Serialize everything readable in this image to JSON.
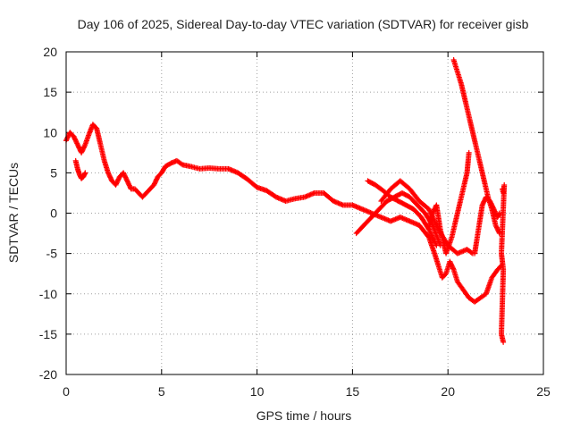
{
  "chart_data": {
    "type": "scatter",
    "title": "Day 106 of 2025, Sidereal Day-to-day VTEC variation (SDTVAR) for receiver gisb",
    "xlabel": "GPS time / hours",
    "ylabel": "SDTVAR / TECUs",
    "xlim": [
      0,
      25
    ],
    "ylim": [
      -20,
      20
    ],
    "xticks": [
      "0",
      "5",
      "10",
      "15",
      "20",
      "25"
    ],
    "yticks": [
      "20",
      "15",
      "10",
      "5",
      "0",
      "-5",
      "-10",
      "-15",
      "-20"
    ],
    "grid": true,
    "marker": "+",
    "color": "#ff0000",
    "series": [
      {
        "name": "main-trace",
        "points": [
          [
            0.0,
            9.0
          ],
          [
            0.2,
            10.0
          ],
          [
            0.4,
            9.5
          ],
          [
            0.6,
            8.5
          ],
          [
            0.8,
            7.5
          ],
          [
            1.0,
            8.5
          ],
          [
            1.2,
            9.8
          ],
          [
            1.4,
            11.0
          ],
          [
            1.6,
            10.5
          ],
          [
            1.8,
            8.5
          ],
          [
            2.0,
            6.5
          ],
          [
            2.2,
            5.0
          ],
          [
            2.4,
            4.0
          ],
          [
            2.6,
            3.5
          ],
          [
            2.8,
            4.5
          ],
          [
            3.0,
            5.0
          ],
          [
            3.2,
            4.0
          ],
          [
            3.4,
            3.0
          ],
          [
            3.6,
            3.0
          ],
          [
            3.8,
            2.5
          ],
          [
            4.0,
            2.0
          ],
          [
            4.2,
            2.5
          ],
          [
            4.4,
            3.0
          ],
          [
            4.6,
            3.5
          ],
          [
            4.8,
            4.5
          ],
          [
            5.0,
            5.0
          ],
          [
            5.2,
            5.8
          ],
          [
            5.5,
            6.2
          ],
          [
            5.8,
            6.5
          ],
          [
            6.1,
            6.0
          ],
          [
            6.5,
            5.8
          ],
          [
            7.0,
            5.5
          ],
          [
            7.5,
            5.6
          ],
          [
            8.0,
            5.5
          ],
          [
            8.5,
            5.5
          ],
          [
            9.0,
            5.0
          ],
          [
            9.5,
            4.2
          ],
          [
            10.0,
            3.2
          ],
          [
            10.5,
            2.8
          ],
          [
            11.0,
            2.0
          ],
          [
            11.5,
            1.5
          ],
          [
            12.0,
            1.8
          ],
          [
            12.5,
            2.0
          ],
          [
            13.0,
            2.5
          ],
          [
            13.5,
            2.5
          ],
          [
            14.0,
            1.5
          ],
          [
            14.5,
            1.0
          ],
          [
            15.0,
            1.0
          ],
          [
            15.5,
            0.5
          ],
          [
            16.0,
            0.0
          ],
          [
            16.5,
            -0.5
          ],
          [
            17.0,
            -1.0
          ],
          [
            17.5,
            -0.5
          ],
          [
            18.0,
            -1.0
          ],
          [
            18.5,
            -1.5
          ],
          [
            19.0,
            -3.0
          ],
          [
            19.3,
            -5.0
          ],
          [
            19.5,
            -6.5
          ],
          [
            19.7,
            -8.0
          ],
          [
            19.9,
            -7.5
          ],
          [
            20.1,
            -6.0
          ],
          [
            20.3,
            -7.0
          ],
          [
            20.5,
            -8.5
          ],
          [
            20.8,
            -9.5
          ],
          [
            21.1,
            -10.5
          ],
          [
            21.4,
            -11.0
          ],
          [
            21.7,
            -10.5
          ],
          [
            22.0,
            -10.0
          ],
          [
            22.3,
            -8.0
          ],
          [
            22.6,
            -7.0
          ],
          [
            22.8,
            -6.5
          ]
        ]
      },
      {
        "name": "early-dip",
        "points": [
          [
            0.5,
            6.5
          ],
          [
            0.6,
            5.5
          ],
          [
            0.7,
            4.8
          ],
          [
            0.8,
            4.3
          ],
          [
            0.9,
            4.5
          ],
          [
            1.0,
            5.0
          ]
        ]
      },
      {
        "name": "mid-branch",
        "points": [
          [
            15.2,
            -2.5
          ],
          [
            15.6,
            -1.5
          ],
          [
            16.0,
            -0.5
          ],
          [
            16.4,
            0.5
          ],
          [
            16.8,
            1.5
          ],
          [
            17.2,
            2.0
          ],
          [
            17.6,
            2.5
          ],
          [
            18.0,
            2.0
          ],
          [
            18.4,
            1.0
          ],
          [
            18.8,
            0.0
          ],
          [
            19.2,
            -1.5
          ],
          [
            19.6,
            -4.0
          ]
        ]
      },
      {
        "name": "upper-branch",
        "points": [
          [
            15.8,
            4.0
          ],
          [
            16.2,
            3.5
          ],
          [
            16.6,
            2.8
          ],
          [
            17.0,
            2.0
          ],
          [
            17.4,
            1.5
          ],
          [
            17.8,
            1.0
          ],
          [
            18.2,
            0.5
          ],
          [
            18.6,
            -0.5
          ],
          [
            19.0,
            -2.0
          ],
          [
            19.4,
            -4.0
          ]
        ]
      },
      {
        "name": "oscillation-branch",
        "points": [
          [
            16.5,
            1.5
          ],
          [
            17.0,
            3.0
          ],
          [
            17.5,
            4.0
          ],
          [
            18.0,
            3.0
          ],
          [
            18.5,
            1.5
          ],
          [
            19.0,
            0.5
          ],
          [
            19.5,
            -2.0
          ],
          [
            20.0,
            -4.0
          ],
          [
            20.5,
            -5.0
          ],
          [
            21.0,
            -4.5
          ],
          [
            21.3,
            -5.0
          ]
        ]
      },
      {
        "name": "rise-branch",
        "points": [
          [
            19.0,
            -2.0
          ],
          [
            19.2,
            0.0
          ],
          [
            19.4,
            1.0
          ],
          [
            19.6,
            -2.0
          ],
          [
            19.9,
            -5.0
          ],
          [
            20.2,
            -3.0
          ],
          [
            20.5,
            0.0
          ],
          [
            20.8,
            3.0
          ],
          [
            21.0,
            5.0
          ],
          [
            21.1,
            7.5
          ]
        ]
      },
      {
        "name": "peak-trace",
        "points": [
          [
            20.3,
            19.0
          ],
          [
            20.5,
            17.5
          ],
          [
            20.7,
            16.0
          ],
          [
            20.9,
            14.0
          ],
          [
            21.1,
            12.0
          ],
          [
            21.3,
            10.0
          ],
          [
            21.5,
            8.0
          ],
          [
            21.7,
            6.0
          ],
          [
            21.9,
            4.0
          ],
          [
            22.1,
            2.0
          ],
          [
            22.3,
            0.5
          ],
          [
            22.5,
            -1.5
          ],
          [
            22.7,
            -2.5
          ]
        ]
      },
      {
        "name": "late-branch",
        "points": [
          [
            21.4,
            -5.0
          ],
          [
            21.6,
            -2.0
          ],
          [
            21.8,
            1.0
          ],
          [
            22.0,
            2.0
          ],
          [
            22.2,
            1.5
          ],
          [
            22.4,
            0.5
          ],
          [
            22.6,
            -0.5
          ],
          [
            22.7,
            0.0
          ]
        ]
      },
      {
        "name": "end-fragments",
        "points": [
          [
            22.85,
            3.0
          ],
          [
            22.9,
            2.5
          ],
          [
            22.95,
            3.5
          ],
          [
            22.8,
            -5.0
          ],
          [
            22.85,
            -6.0
          ],
          [
            22.9,
            -7.0
          ],
          [
            22.8,
            -15.0
          ],
          [
            22.85,
            -15.5
          ],
          [
            22.9,
            -16.0
          ]
        ]
      }
    ]
  }
}
